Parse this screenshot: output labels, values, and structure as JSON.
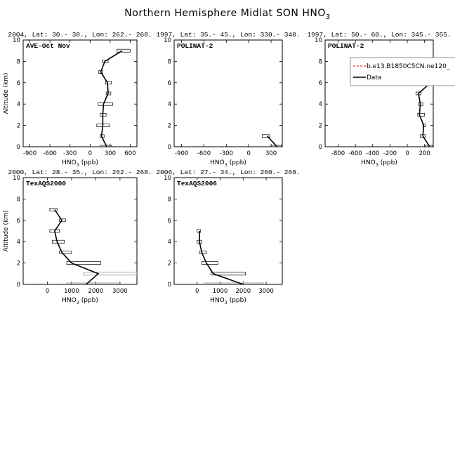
{
  "figure": {
    "title": "Northern Hemisphere Midlat SON HNO",
    "title_sub": "3"
  },
  "chart_data": [
    {
      "type": "line",
      "header": "2004, Lat: 30.- 38., Lon: 262.- 268.",
      "campaign": "AVE-Oct Nov",
      "xlabel": "HNO",
      "xlabel_sub": "3",
      "xlabel_unit": " (ppb)",
      "ylabel": "Altitude (km)",
      "xlim": [
        -1000,
        700
      ],
      "ylim": [
        0,
        10
      ],
      "xticks": [
        -900,
        -600,
        -300,
        0,
        300,
        600
      ],
      "yticks": [
        0,
        2,
        4,
        6,
        8,
        10
      ],
      "series": [
        {
          "altitude": [
            0,
            1,
            2,
            3,
            4,
            5,
            6,
            7,
            8,
            9
          ],
          "mean": [
            250,
            170,
            190,
            190,
            200,
            270,
            260,
            160,
            220,
            480
          ],
          "box_low": [
            150,
            150,
            100,
            150,
            120,
            240,
            230,
            130,
            180,
            400
          ],
          "box_high": [
            320,
            210,
            290,
            240,
            340,
            310,
            320,
            190,
            270,
            600
          ]
        }
      ]
    },
    {
      "type": "line",
      "header": "1997, Lat: 35.- 45., Lon: 330.- 340.",
      "campaign": "POLINAT-2",
      "xlabel": "HNO",
      "xlabel_sub": "3",
      "xlabel_unit": " (ppb)",
      "ylabel": "",
      "xlim": [
        -1000,
        450
      ],
      "ylim": [
        0,
        10
      ],
      "xticks": [
        -900,
        -600,
        -300,
        0,
        300
      ],
      "yticks": [
        0,
        2,
        4,
        6,
        8,
        10
      ],
      "series": [
        {
          "altitude": [
            0,
            1
          ],
          "mean": [
            380,
            250
          ],
          "box_low": [
            300,
            180
          ],
          "box_high": [
            440,
            280
          ]
        }
      ]
    },
    {
      "type": "line",
      "header": "1997, Lat: 50.- 60., Lon: 345.- 355.",
      "campaign": "POLINAT-2",
      "xlabel": "HNO",
      "xlabel_sub": "3",
      "xlabel_unit": " (ppb)",
      "ylabel": "",
      "xlim": [
        -950,
        300
      ],
      "ylim": [
        0,
        10
      ],
      "xticks": [
        -800,
        -600,
        -400,
        -200,
        0,
        200
      ],
      "yticks": [
        0,
        2,
        4,
        6,
        8,
        10
      ],
      "legend": {
        "entries": [
          {
            "label": "b.e13.B1850C5CN.ne120_",
            "color": "#ff0000",
            "dash": "3,2"
          },
          {
            "label": "Data",
            "color": "#000000",
            "dash": ""
          }
        ]
      },
      "series": [
        {
          "altitude": [
            0,
            1,
            2,
            3,
            4,
            5,
            6,
            7
          ],
          "mean": [
            260,
            180,
            190,
            140,
            150,
            130,
            270,
            210
          ],
          "box_low": [
            210,
            150,
            180,
            120,
            130,
            100,
            220,
            170
          ],
          "box_high": [
            290,
            210,
            210,
            200,
            180,
            160,
            290,
            250
          ]
        }
      ]
    },
    {
      "type": "line",
      "header": "2000, Lat: 28.- 35., Lon: 262.- 268.",
      "campaign": "TexAQS2000",
      "xlabel": "HNO",
      "xlabel_sub": "3",
      "xlabel_unit": " (ppb)",
      "ylabel": "Altitude (km)",
      "xlim": [
        -1000,
        3700
      ],
      "ylim": [
        0,
        10
      ],
      "xticks": [
        0,
        1000,
        2000,
        3000
      ],
      "yticks": [
        0,
        2,
        4,
        6,
        8,
        10
      ],
      "series": [
        {
          "altitude": [
            0,
            1,
            2,
            3,
            4,
            5,
            6,
            7
          ],
          "mean": [
            1600,
            2100,
            1000,
            600,
            400,
            300,
            600,
            300
          ],
          "box_low": [
            800,
            1500,
            800,
            500,
            200,
            100,
            500,
            100
          ],
          "box_high": [
            2900,
            3700,
            2200,
            1000,
            700,
            500,
            750,
            400
          ]
        }
      ]
    },
    {
      "type": "line",
      "header": "2006, Lat: 27.- 34., Lon: 260.- 268.",
      "campaign": "TexAQS2006",
      "xlabel": "HNO",
      "xlabel_sub": "3",
      "xlabel_unit": " (ppb)",
      "ylabel": "",
      "xlim": [
        -1000,
        3700
      ],
      "ylim": [
        0,
        10
      ],
      "xticks": [
        0,
        1000,
        2000,
        3000
      ],
      "yticks": [
        0,
        2,
        4,
        6,
        8,
        10
      ],
      "series": [
        {
          "altitude": [
            0,
            1,
            2,
            3,
            4,
            5
          ],
          "mean": [
            2000,
            700,
            400,
            200,
            100,
            100
          ],
          "box_low": [
            300,
            600,
            200,
            100,
            0,
            0
          ],
          "box_high": [
            2900,
            2100,
            900,
            400,
            200,
            150
          ]
        }
      ]
    }
  ]
}
